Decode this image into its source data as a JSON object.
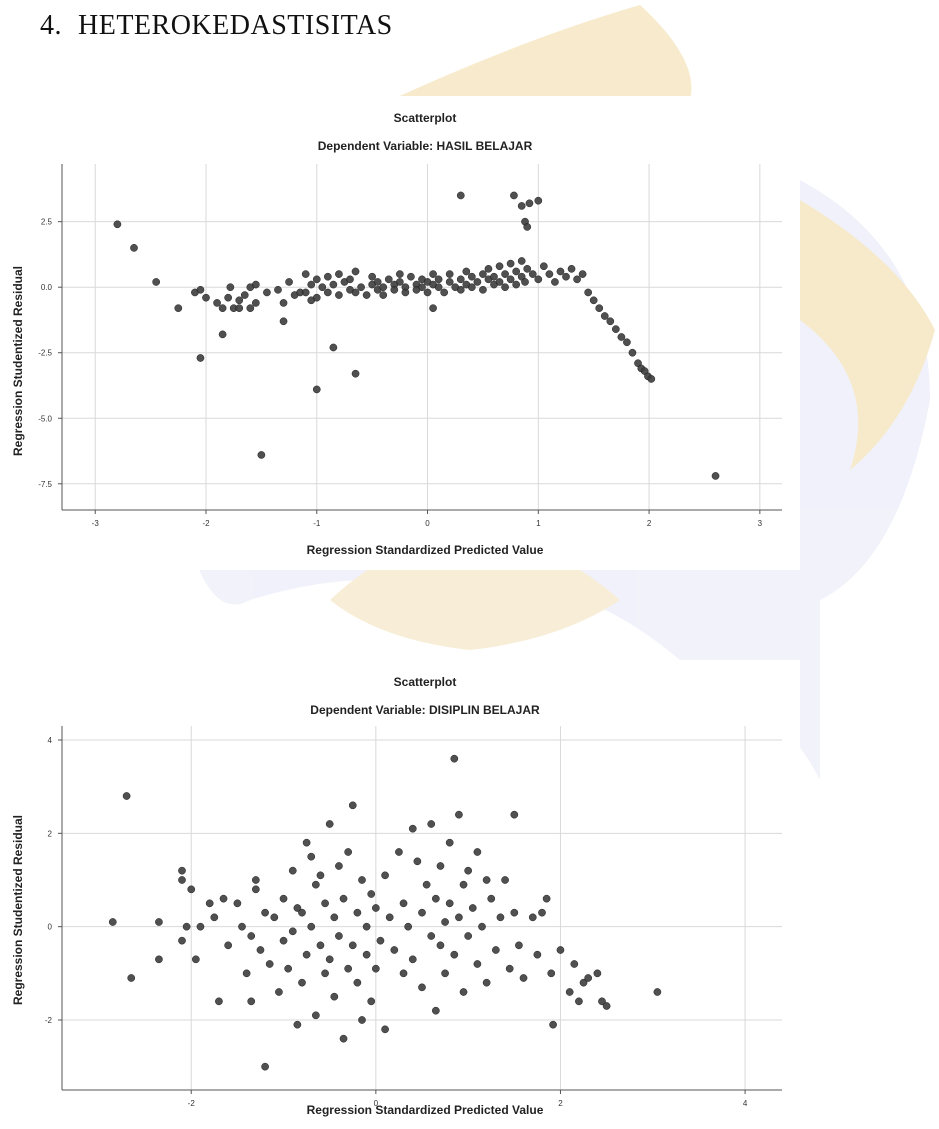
{
  "heading": {
    "number": "4.",
    "text": "HETEROKEDASTISITAS"
  },
  "colors": {
    "point": "#3d3d3d",
    "grid": "#d9d9d9",
    "axis": "#555555",
    "watermark_gold": "#e8c070",
    "watermark_blue": "#b7bde3"
  },
  "chart_data": [
    {
      "type": "scatter",
      "title": "Scatterplot",
      "subtitle": "Dependent Variable: HASIL BELAJAR",
      "xlabel": "Regression Standardized Predicted Value",
      "ylabel": "Regression Studentized Residual",
      "xlim": [
        -3.3,
        3.2
      ],
      "ylim": [
        -8.5,
        4.7
      ],
      "xticks": [
        -3,
        -2,
        -1,
        0,
        1,
        2,
        3
      ],
      "xtick_labels": [
        "-3",
        "-2",
        "-1",
        "0",
        "1",
        "2",
        "3"
      ],
      "yticks": [
        2.5,
        0.0,
        -2.5,
        -5.0,
        -7.5
      ],
      "ytick_labels": [
        "2.5",
        "0.0",
        "-2.5",
        "-5.0",
        "-7.5"
      ],
      "grid": true,
      "points": [
        [
          -2.8,
          2.4
        ],
        [
          -2.65,
          1.5
        ],
        [
          -2.45,
          0.2
        ],
        [
          -2.25,
          -0.8
        ],
        [
          -2.1,
          -0.2
        ],
        [
          -2.05,
          -0.1
        ],
        [
          -2.05,
          -2.7
        ],
        [
          -2.0,
          -0.4
        ],
        [
          -1.9,
          -0.6
        ],
        [
          -1.85,
          -1.8
        ],
        [
          -1.85,
          -0.8
        ],
        [
          -1.8,
          -0.4
        ],
        [
          -1.78,
          0.0
        ],
        [
          -1.75,
          -0.8
        ],
        [
          -1.7,
          -0.5
        ],
        [
          -1.7,
          -0.8
        ],
        [
          -1.65,
          -0.3
        ],
        [
          -1.6,
          0.0
        ],
        [
          -1.6,
          -0.8
        ],
        [
          -1.55,
          -0.6
        ],
        [
          -1.55,
          0.1
        ],
        [
          -1.5,
          -6.4
        ],
        [
          -1.45,
          -0.2
        ],
        [
          -1.35,
          -0.1
        ],
        [
          -1.3,
          -0.6
        ],
        [
          -1.3,
          -1.3
        ],
        [
          -1.25,
          0.2
        ],
        [
          -1.2,
          -0.3
        ],
        [
          -1.15,
          -0.2
        ],
        [
          -1.1,
          0.5
        ],
        [
          -1.1,
          -0.2
        ],
        [
          -1.05,
          -0.5
        ],
        [
          -1.05,
          0.1
        ],
        [
          -1.0,
          0.3
        ],
        [
          -1.0,
          -0.4
        ],
        [
          -1.0,
          -3.9
        ],
        [
          -0.95,
          0.0
        ],
        [
          -0.9,
          0.4
        ],
        [
          -0.9,
          -0.2
        ],
        [
          -0.85,
          0.1
        ],
        [
          -0.8,
          -0.3
        ],
        [
          -0.8,
          0.5
        ],
        [
          -0.75,
          0.2
        ],
        [
          -0.7,
          -0.1
        ],
        [
          -0.7,
          0.3
        ],
        [
          -0.65,
          0.6
        ],
        [
          -0.65,
          -0.2
        ],
        [
          -0.6,
          0.0
        ],
        [
          -0.55,
          -0.3
        ],
        [
          -0.5,
          0.1
        ],
        [
          -0.5,
          0.4
        ],
        [
          -0.45,
          -0.1
        ],
        [
          -0.45,
          0.2
        ],
        [
          -0.4,
          0.0
        ],
        [
          -0.4,
          -0.3
        ],
        [
          -0.35,
          0.3
        ],
        [
          -0.3,
          0.1
        ],
        [
          -0.3,
          -0.1
        ],
        [
          -0.25,
          0.5
        ],
        [
          -0.25,
          0.2
        ],
        [
          -0.2,
          0.0
        ],
        [
          -0.2,
          -0.2
        ],
        [
          -0.15,
          0.4
        ],
        [
          -0.1,
          0.1
        ],
        [
          -0.1,
          -0.1
        ],
        [
          -0.05,
          0.3
        ],
        [
          -0.05,
          0.0
        ],
        [
          0.0,
          0.2
        ],
        [
          0.0,
          -0.2
        ],
        [
          0.05,
          0.5
        ],
        [
          0.05,
          0.1
        ],
        [
          0.1,
          0.0
        ],
        [
          0.1,
          0.3
        ],
        [
          0.15,
          -0.2
        ],
        [
          0.2,
          0.2
        ],
        [
          0.2,
          0.5
        ],
        [
          0.25,
          0.0
        ],
        [
          0.3,
          0.3
        ],
        [
          0.3,
          -0.1
        ],
        [
          0.35,
          0.6
        ],
        [
          0.35,
          0.1
        ],
        [
          0.4,
          0.4
        ],
        [
          0.4,
          0.0
        ],
        [
          0.45,
          0.2
        ],
        [
          0.5,
          0.5
        ],
        [
          0.5,
          -0.1
        ],
        [
          0.55,
          0.3
        ],
        [
          0.55,
          0.7
        ],
        [
          0.6,
          0.1
        ],
        [
          0.6,
          0.4
        ],
        [
          0.65,
          0.8
        ],
        [
          0.65,
          0.2
        ],
        [
          0.7,
          0.5
        ],
        [
          0.7,
          0.0
        ],
        [
          0.75,
          0.3
        ],
        [
          0.75,
          0.9
        ],
        [
          0.8,
          0.6
        ],
        [
          0.8,
          0.1
        ],
        [
          0.85,
          0.4
        ],
        [
          0.85,
          1.0
        ],
        [
          0.88,
          0.2
        ],
        [
          0.9,
          0.7
        ],
        [
          0.95,
          0.5
        ],
        [
          1.0,
          0.3
        ],
        [
          1.05,
          0.8
        ],
        [
          1.1,
          0.5
        ],
        [
          1.15,
          0.2
        ],
        [
          1.2,
          0.6
        ],
        [
          1.25,
          0.4
        ],
        [
          1.3,
          0.7
        ],
        [
          1.35,
          0.3
        ],
        [
          1.4,
          0.5
        ],
        [
          1.45,
          -0.2
        ],
        [
          1.5,
          -0.5
        ],
        [
          1.55,
          -0.8
        ],
        [
          1.6,
          -1.1
        ],
        [
          1.65,
          -1.3
        ],
        [
          1.7,
          -1.6
        ],
        [
          1.75,
          -1.9
        ],
        [
          1.8,
          -2.1
        ],
        [
          1.85,
          -2.5
        ],
        [
          1.9,
          -2.9
        ],
        [
          1.93,
          -3.1
        ],
        [
          1.96,
          -3.2
        ],
        [
          1.99,
          -3.4
        ],
        [
          2.02,
          -3.5
        ],
        [
          0.3,
          3.5
        ],
        [
          0.78,
          3.5
        ],
        [
          0.85,
          3.1
        ],
        [
          0.92,
          3.2
        ],
        [
          0.88,
          2.5
        ],
        [
          0.9,
          2.3
        ],
        [
          1.0,
          3.3
        ],
        [
          -0.85,
          -2.3
        ],
        [
          -0.65,
          -3.3
        ],
        [
          0.05,
          -0.8
        ],
        [
          2.6,
          -7.2
        ]
      ]
    },
    {
      "type": "scatter",
      "title": "Scatterplot",
      "subtitle": "Dependent Variable: DISIPLIN BELAJAR",
      "xlabel": "Regression Standardized Predicted Value",
      "ylabel": "Regression Studentized Residual",
      "xlim": [
        -3.4,
        4.4
      ],
      "ylim": [
        -3.5,
        4.3
      ],
      "xticks": [
        -2,
        0,
        2,
        4
      ],
      "xtick_labels": [
        "-2",
        "0",
        "2",
        "4"
      ],
      "yticks": [
        4,
        2,
        0,
        -2
      ],
      "ytick_labels": [
        "4",
        "2",
        "0",
        "-2"
      ],
      "grid": true,
      "points": [
        [
          -2.7,
          2.8
        ],
        [
          -2.85,
          0.1
        ],
        [
          -2.65,
          -1.1
        ],
        [
          -2.35,
          0.1
        ],
        [
          -2.35,
          -0.7
        ],
        [
          -2.1,
          1.2
        ],
        [
          -2.1,
          1.0
        ],
        [
          -2.1,
          -0.3
        ],
        [
          -2.05,
          0.0
        ],
        [
          -2.0,
          0.8
        ],
        [
          -1.95,
          -0.7
        ],
        [
          -1.9,
          0.0
        ],
        [
          -1.8,
          0.5
        ],
        [
          -1.75,
          0.2
        ],
        [
          -1.7,
          -1.6
        ],
        [
          -1.65,
          0.6
        ],
        [
          -1.6,
          -0.4
        ],
        [
          -1.5,
          0.5
        ],
        [
          -1.45,
          0.0
        ],
        [
          -1.4,
          -1.0
        ],
        [
          -1.35,
          -0.2
        ],
        [
          -1.35,
          -1.6
        ],
        [
          -1.3,
          0.8
        ],
        [
          -1.3,
          1.0
        ],
        [
          -1.25,
          -0.5
        ],
        [
          -1.2,
          -3.0
        ],
        [
          -1.2,
          0.3
        ],
        [
          -1.15,
          -0.8
        ],
        [
          -1.1,
          0.2
        ],
        [
          -1.05,
          -1.4
        ],
        [
          -1.0,
          -0.3
        ],
        [
          -1.0,
          0.6
        ],
        [
          -0.95,
          -0.9
        ],
        [
          -0.9,
          1.2
        ],
        [
          -0.9,
          -0.1
        ],
        [
          -0.85,
          -2.1
        ],
        [
          -0.85,
          0.4
        ],
        [
          -0.8,
          0.3
        ],
        [
          -0.8,
          -1.2
        ],
        [
          -0.75,
          1.8
        ],
        [
          -0.75,
          -0.6
        ],
        [
          -0.7,
          1.5
        ],
        [
          -0.7,
          0.0
        ],
        [
          -0.65,
          -1.9
        ],
        [
          -0.65,
          0.9
        ],
        [
          -0.6,
          -0.4
        ],
        [
          -0.6,
          1.1
        ],
        [
          -0.55,
          -1.0
        ],
        [
          -0.55,
          0.5
        ],
        [
          -0.5,
          2.2
        ],
        [
          -0.5,
          -0.7
        ],
        [
          -0.45,
          0.2
        ],
        [
          -0.45,
          -1.5
        ],
        [
          -0.4,
          1.3
        ],
        [
          -0.4,
          -0.2
        ],
        [
          -0.35,
          -2.4
        ],
        [
          -0.35,
          0.6
        ],
        [
          -0.3,
          -0.9
        ],
        [
          -0.3,
          1.6
        ],
        [
          -0.25,
          2.6
        ],
        [
          -0.25,
          -0.4
        ],
        [
          -0.2,
          0.3
        ],
        [
          -0.2,
          -1.2
        ],
        [
          -0.15,
          1.0
        ],
        [
          -0.15,
          -2.0
        ],
        [
          -0.1,
          0.0
        ],
        [
          -0.1,
          -0.6
        ],
        [
          -0.05,
          0.7
        ],
        [
          -0.05,
          -1.6
        ],
        [
          0.0,
          -0.9
        ],
        [
          0.0,
          0.4
        ],
        [
          0.05,
          -0.3
        ],
        [
          0.1,
          1.1
        ],
        [
          0.1,
          -2.2
        ],
        [
          0.15,
          0.2
        ],
        [
          0.2,
          -0.5
        ],
        [
          0.25,
          1.6
        ],
        [
          0.3,
          0.5
        ],
        [
          0.3,
          -1.0
        ],
        [
          0.35,
          0.0
        ],
        [
          0.4,
          2.1
        ],
        [
          0.4,
          -0.7
        ],
        [
          0.45,
          1.4
        ],
        [
          0.5,
          0.3
        ],
        [
          0.5,
          -1.3
        ],
        [
          0.55,
          0.9
        ],
        [
          0.6,
          -0.2
        ],
        [
          0.6,
          2.2
        ],
        [
          0.65,
          0.6
        ],
        [
          0.65,
          -1.8
        ],
        [
          0.7,
          1.3
        ],
        [
          0.7,
          -0.4
        ],
        [
          0.75,
          0.1
        ],
        [
          0.75,
          -1.0
        ],
        [
          0.8,
          1.8
        ],
        [
          0.8,
          0.5
        ],
        [
          0.85,
          3.6
        ],
        [
          0.85,
          -0.6
        ],
        [
          0.9,
          2.4
        ],
        [
          0.9,
          0.2
        ],
        [
          0.95,
          -1.4
        ],
        [
          0.95,
          0.9
        ],
        [
          1.0,
          1.2
        ],
        [
          1.0,
          -0.2
        ],
        [
          1.05,
          0.4
        ],
        [
          1.1,
          -0.8
        ],
        [
          1.1,
          1.6
        ],
        [
          1.15,
          0.0
        ],
        [
          1.2,
          -1.2
        ],
        [
          1.2,
          1.0
        ],
        [
          1.25,
          0.6
        ],
        [
          1.3,
          -0.5
        ],
        [
          1.35,
          0.2
        ],
        [
          1.4,
          1.0
        ],
        [
          1.45,
          -0.9
        ],
        [
          1.5,
          2.4
        ],
        [
          1.5,
          0.3
        ],
        [
          1.55,
          -0.4
        ],
        [
          1.6,
          -1.1
        ],
        [
          1.7,
          0.2
        ],
        [
          1.75,
          -0.6
        ],
        [
          1.8,
          0.3
        ],
        [
          1.85,
          0.6
        ],
        [
          1.9,
          -1.0
        ],
        [
          1.92,
          -2.1
        ],
        [
          2.0,
          -0.5
        ],
        [
          2.1,
          -1.4
        ],
        [
          2.15,
          -0.8
        ],
        [
          2.2,
          -1.6
        ],
        [
          2.25,
          -1.2
        ],
        [
          2.3,
          -1.1
        ],
        [
          2.4,
          -1.0
        ],
        [
          2.45,
          -1.6
        ],
        [
          2.5,
          -1.7
        ],
        [
          3.05,
          -1.4
        ]
      ]
    }
  ]
}
